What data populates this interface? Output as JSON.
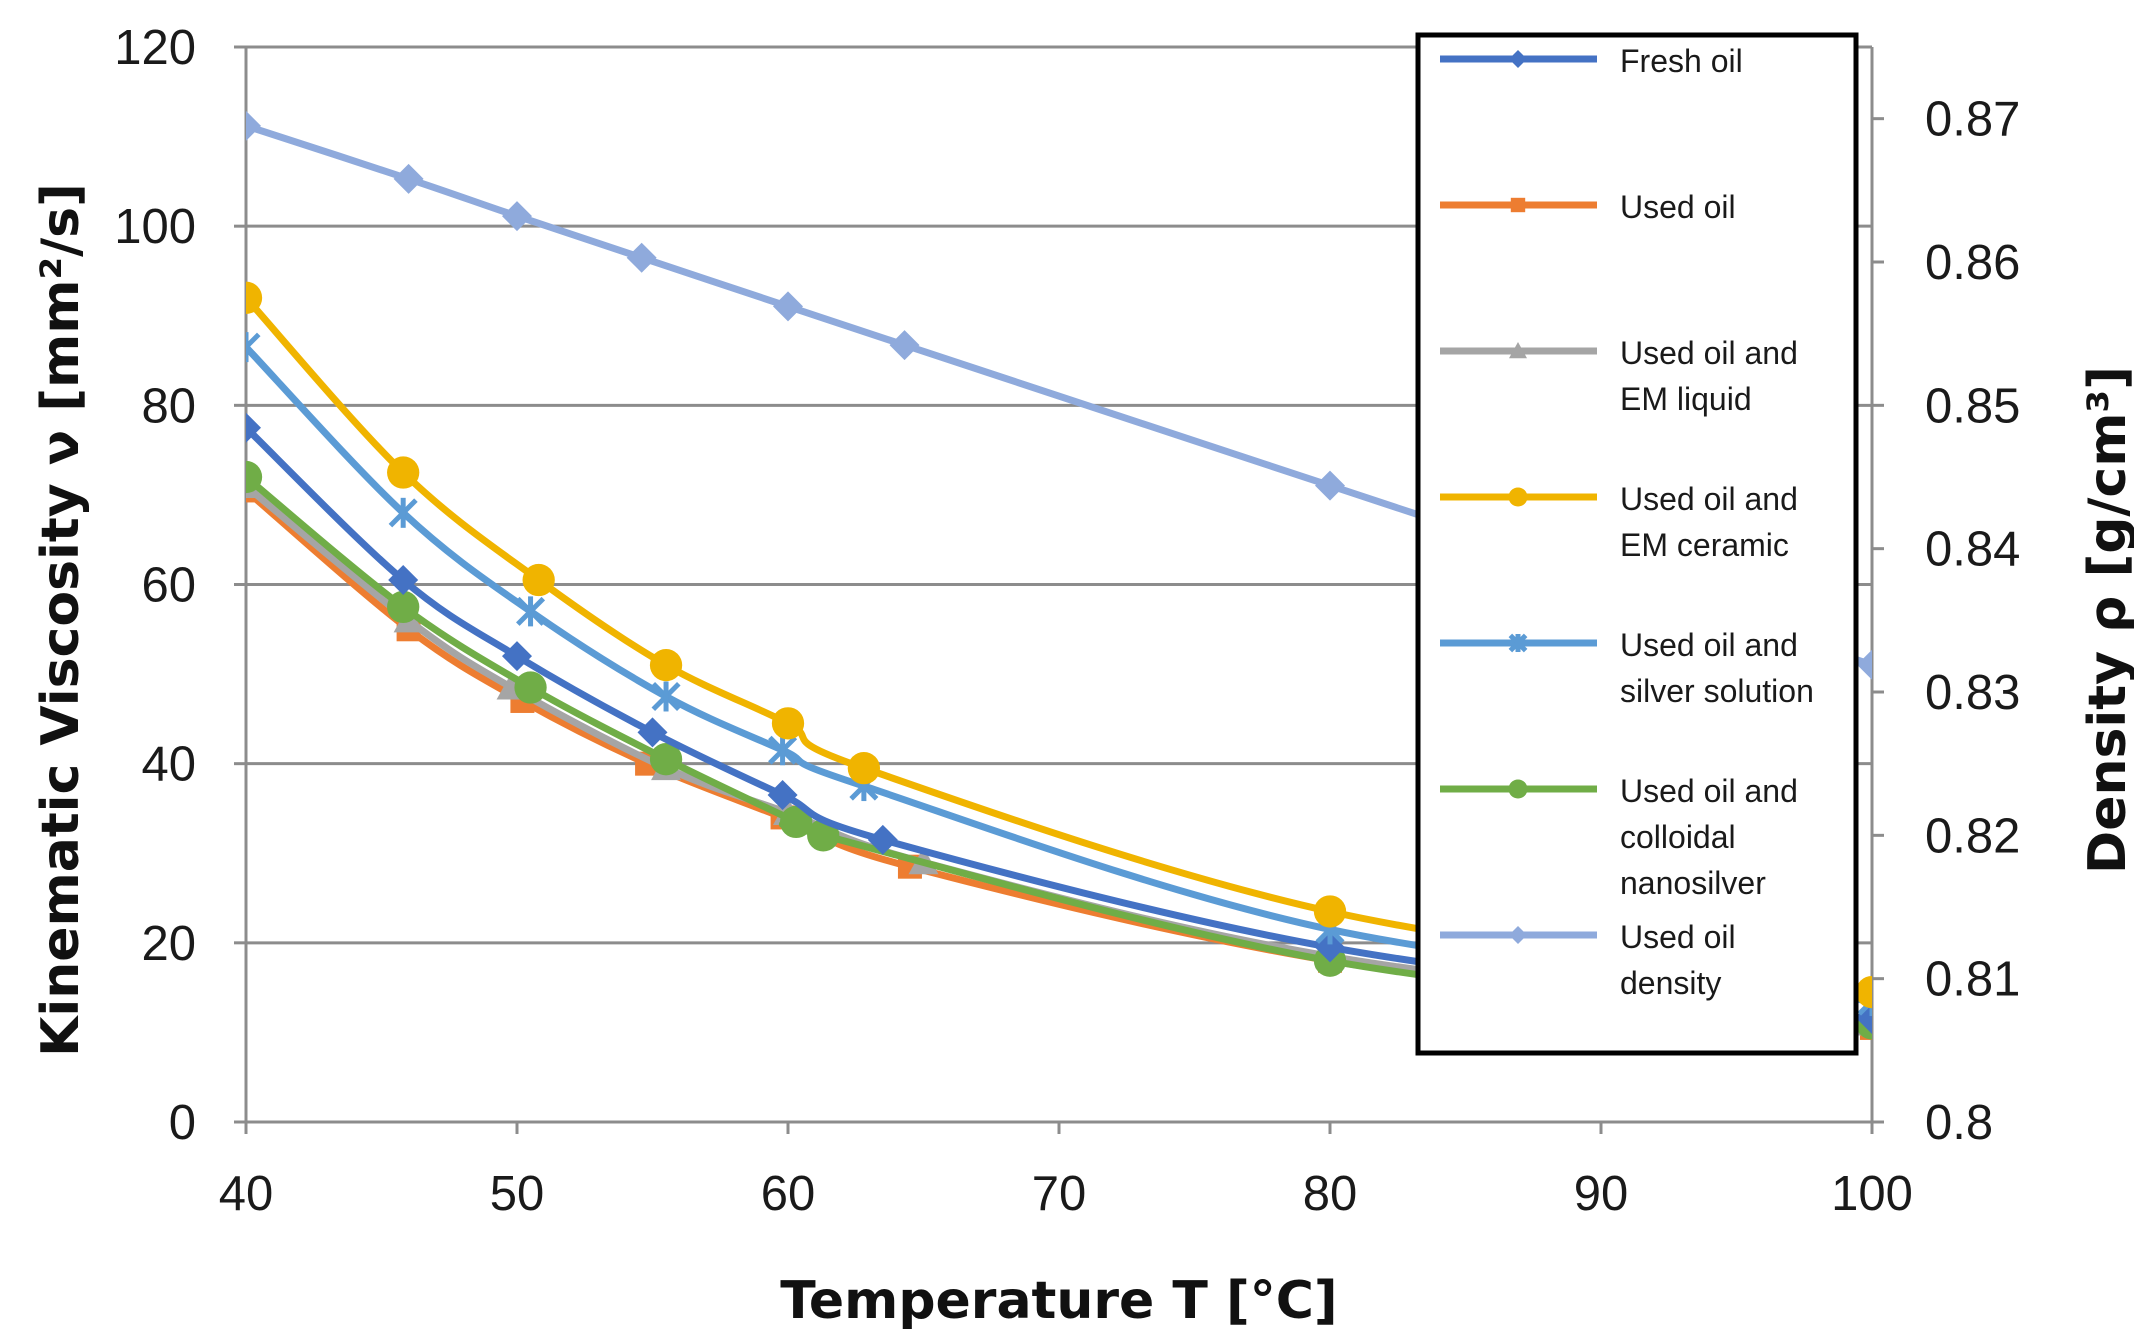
{
  "chart_data": {
    "type": "line",
    "title": "",
    "xlabel": "Temperature T  [°C]",
    "ylabel": "Kinematic Viscosity ν [mm²/s]",
    "y2label": "Density ρ [g/cm³]",
    "xlim": [
      40,
      100
    ],
    "ylim": [
      0,
      120
    ],
    "y2lim": [
      0.8,
      0.875
    ],
    "xticks": [
      "40",
      "50",
      "60",
      "70",
      "80",
      "90",
      "100"
    ],
    "yticks": [
      "0",
      "20",
      "40",
      "60",
      "80",
      "100",
      "120"
    ],
    "y2ticks": [
      "0.8",
      "0.81",
      "0.82",
      "0.83",
      "0.84",
      "0.85",
      "0.86",
      "0.87"
    ],
    "grid": "horizontal",
    "legend_position": "top-right",
    "series": [
      {
        "name": "Fresh oil",
        "legend_lines": [
          "Fresh oil"
        ],
        "color": "#4472C4",
        "marker": "diamond",
        "axis": "left",
        "x": [
          40,
          45.8,
          50,
          55,
          59.8,
          63.5,
          80,
          100
        ],
        "y": [
          77.5,
          60.5,
          52,
          43.5,
          36.5,
          31.5,
          19.5,
          11.5
        ]
      },
      {
        "name": "Used oil",
        "legend_lines": [
          "Used oil"
        ],
        "color": "#ED7D31",
        "marker": "square",
        "axis": "left",
        "x": [
          40,
          46,
          50.2,
          54.8,
          59.8,
          64.5,
          80,
          100
        ],
        "y": [
          70.5,
          55,
          47,
          40,
          34,
          28.5,
          18,
          10.5
        ]
      },
      {
        "name": "Used oil and EM liquid",
        "legend_lines": [
          "Used oil and",
          "EM liquid"
        ],
        "color": "#A5A5A5",
        "marker": "triangle",
        "axis": "left",
        "x": [
          40,
          46,
          49.8,
          55.5,
          60,
          65,
          80,
          100
        ],
        "y": [
          71,
          56,
          48.5,
          39.5,
          34.5,
          29,
          18.5,
          11
        ]
      },
      {
        "name": "Used oil and EM ceramic",
        "legend_lines": [
          "Used oil and",
          "EM ceramic"
        ],
        "color": "#F0B400",
        "marker": "circle",
        "axis": "left",
        "x": [
          40,
          45.8,
          50.8,
          55.5,
          60,
          62.8,
          80,
          100
        ],
        "y": [
          92,
          72.5,
          60.5,
          51,
          44.5,
          39.5,
          23.5,
          14.5
        ]
      },
      {
        "name": "Used oil and silver solution",
        "legend_lines": [
          "Used oil and",
          "silver solution"
        ],
        "color": "#5B9BD5",
        "marker": "star",
        "axis": "left",
        "x": [
          40,
          45.8,
          50.5,
          55.5,
          59.8,
          62.8,
          80,
          100
        ],
        "y": [
          86.5,
          68,
          57,
          47.5,
          41.5,
          37.5,
          21.5,
          13.5
        ]
      },
      {
        "name": "Used oil and colloidal nanosilver",
        "legend_lines": [
          "Used oil and",
          "colloidal",
          "nanosilver"
        ],
        "color": "#70AD47",
        "marker": "circle",
        "axis": "left",
        "x": [
          40,
          45.8,
          50.5,
          55.5,
          60.3,
          61.3,
          80,
          100
        ],
        "y": [
          72,
          57.5,
          48.5,
          40.5,
          33.5,
          32,
          18,
          11
        ]
      },
      {
        "name": "Used oil density",
        "legend_lines": [
          "Used oil",
          "density"
        ],
        "color": "#8FAADC",
        "marker": "diamond",
        "axis": "right",
        "x": [
          40,
          46,
          50,
          54.6,
          60,
          64.3,
          80,
          100
        ],
        "y": [
          0.8695,
          0.8658,
          0.8632,
          0.8603,
          0.8569,
          0.8542,
          0.8444,
          0.8319
        ]
      }
    ]
  }
}
